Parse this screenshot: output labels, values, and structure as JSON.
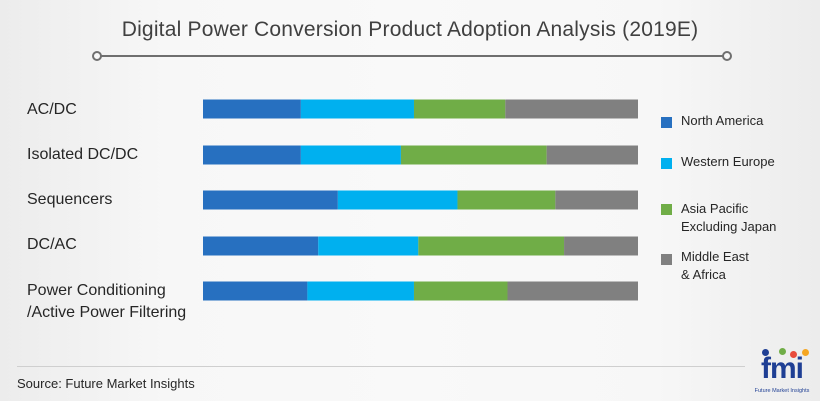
{
  "title": "Digital Power Conversion Product Adoption Analysis (2019E)",
  "source": "Source: Future Market Insights",
  "logo": {
    "text": "fmi",
    "subtext": "Future Market Insights"
  },
  "colors": {
    "north_america": "#2770c0",
    "western_europe": "#00b0ef",
    "asia_pacific": "#70ad47",
    "middle_east": "#808080"
  },
  "legend": [
    {
      "label": "North America",
      "color": "#2770c0"
    },
    {
      "label": "Western Europe",
      "color": "#00b0ef"
    },
    {
      "label": "Asia Pacific\nExcluding Japan",
      "color": "#70ad47"
    },
    {
      "label": "Middle East\n& Africa",
      "color": "#808080"
    }
  ],
  "chart_data": {
    "type": "bar",
    "orientation": "horizontal",
    "stacked": true,
    "percent": true,
    "title": "Digital Power Conversion Product Adoption Analysis (2019E)",
    "xlabel": "",
    "ylabel": "",
    "xlim": [
      0,
      100
    ],
    "grid": false,
    "legend_position": "right",
    "categories": [
      "AC/DC",
      "Isolated DC/DC",
      "Sequencers",
      "DC/AC",
      "Power Conditioning\n/Active Power Filtering"
    ],
    "series": [
      {
        "name": "North America",
        "color": "#2770c0",
        "values": [
          22.5,
          22.5,
          31,
          26.5,
          24
        ]
      },
      {
        "name": "Western Europe",
        "color": "#00b0ef",
        "values": [
          26,
          23,
          27.5,
          23,
          24.5
        ]
      },
      {
        "name": "Asia Pacific Excluding Japan",
        "color": "#70ad47",
        "values": [
          21,
          33.5,
          22.5,
          33.5,
          21.5
        ]
      },
      {
        "name": "Middle East & Africa",
        "color": "#808080",
        "values": [
          30.5,
          21,
          19,
          17,
          30
        ]
      }
    ]
  }
}
